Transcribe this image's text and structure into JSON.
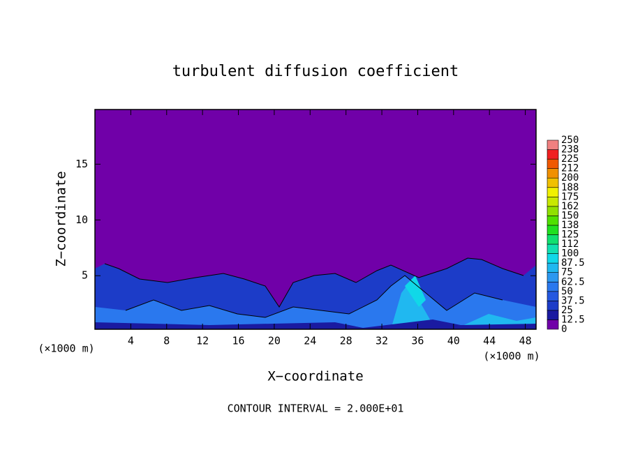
{
  "chart_data": {
    "type": "contour",
    "title": "turbulent diffusion coefficient",
    "xlabel": "X−coordinate",
    "ylabel": "Z−coordinate",
    "x_unit_label": "(×1000 m)",
    "note": "CONTOUR INTERVAL = 2.000E+01",
    "xlim": [
      0,
      49.2
    ],
    "xticks": [
      4,
      8,
      12,
      16,
      20,
      24,
      28,
      32,
      36,
      40,
      44,
      48
    ],
    "ylim": [
      0.2,
      19.9
    ],
    "yticks": [
      5,
      10,
      15
    ],
    "colorbar": {
      "levels": [
        0,
        12.5,
        25,
        37.5,
        50,
        62.5,
        75,
        87.5,
        100,
        {
          "value": 112.5,
          "label": "112"
        },
        125,
        {
          "value": 137.5,
          "label": "138"
        },
        150,
        {
          "value": 162.5,
          "label": "162"
        },
        175,
        {
          "value": 187.5,
          "label": "188"
        },
        200,
        {
          "value": 212.5,
          "label": "212"
        },
        225,
        {
          "value": 237.5,
          "label": "238"
        },
        250
      ],
      "colors": [
        "#7000a8",
        "#1a1aa0",
        "#1c3cc8",
        "#2458e0",
        "#2a78ee",
        "#2c98f0",
        "#20b8f0",
        "#10d8e8",
        "#10e0b0",
        "#10e070",
        "#20e020",
        "#50e000",
        "#90e000",
        "#c8e800",
        "#f0f000",
        "#f0c000",
        "#f09000",
        "#f05800",
        "#f02020",
        "#f08080"
      ]
    }
  }
}
